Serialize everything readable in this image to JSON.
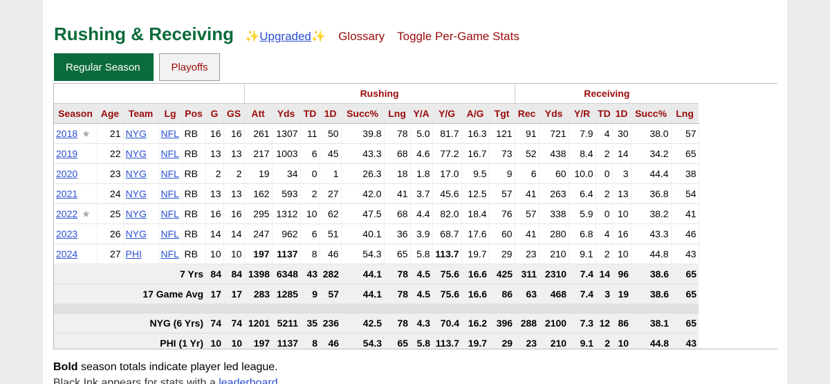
{
  "section": {
    "title": "Rushing & Receiving",
    "sparkle": "✨",
    "upgraded": "Upgraded",
    "glossary": "Glossary",
    "toggle": "Toggle Per-Game Stats"
  },
  "tabs": [
    "Regular Season",
    "Playoffs"
  ],
  "groups": {
    "rushing": "Rushing",
    "receiving": "Receiving"
  },
  "columns": [
    "Season",
    "Age",
    "Team",
    "Lg",
    "Pos",
    "G",
    "GS",
    "Att",
    "Yds",
    "TD",
    "1D",
    "Succ%",
    "Lng",
    "Y/A",
    "Y/G",
    "A/G",
    "Tgt",
    "Rec",
    "Yds",
    "Y/R",
    "TD",
    "1D",
    "Succ%",
    "Lng"
  ],
  "rows": [
    {
      "season": "2018",
      "star": true,
      "age": "21",
      "team": "NYG",
      "lg": "NFL",
      "pos": "RB",
      "vals": [
        "16",
        "16",
        "261",
        "1307",
        "11",
        "50",
        "39.8",
        "78",
        "5.0",
        "81.7",
        "16.3",
        "121",
        "91",
        "721",
        "7.9",
        "4",
        "30",
        "38.0",
        "57"
      ],
      "bold": []
    },
    {
      "season": "2019",
      "star": false,
      "age": "22",
      "team": "NYG",
      "lg": "NFL",
      "pos": "RB",
      "vals": [
        "13",
        "13",
        "217",
        "1003",
        "6",
        "45",
        "43.3",
        "68",
        "4.6",
        "77.2",
        "16.7",
        "73",
        "52",
        "438",
        "8.4",
        "2",
        "14",
        "34.2",
        "65"
      ],
      "bold": []
    },
    {
      "season": "2020",
      "star": false,
      "age": "23",
      "team": "NYG",
      "lg": "NFL",
      "pos": "RB",
      "vals": [
        "2",
        "2",
        "19",
        "34",
        "0",
        "1",
        "26.3",
        "18",
        "1.8",
        "17.0",
        "9.5",
        "9",
        "6",
        "60",
        "10.0",
        "0",
        "3",
        "44.4",
        "38"
      ],
      "bold": []
    },
    {
      "season": "2021",
      "star": false,
      "age": "24",
      "team": "NYG",
      "lg": "NFL",
      "pos": "RB",
      "vals": [
        "13",
        "13",
        "162",
        "593",
        "2",
        "27",
        "42.0",
        "41",
        "3.7",
        "45.6",
        "12.5",
        "57",
        "41",
        "263",
        "6.4",
        "2",
        "13",
        "36.8",
        "54"
      ],
      "bold": []
    },
    {
      "season": "2022",
      "star": true,
      "age": "25",
      "team": "NYG",
      "lg": "NFL",
      "pos": "RB",
      "vals": [
        "16",
        "16",
        "295",
        "1312",
        "10",
        "62",
        "47.5",
        "68",
        "4.4",
        "82.0",
        "18.4",
        "76",
        "57",
        "338",
        "5.9",
        "0",
        "10",
        "38.2",
        "41"
      ],
      "bold": []
    },
    {
      "season": "2023",
      "star": false,
      "age": "26",
      "team": "NYG",
      "lg": "NFL",
      "pos": "RB",
      "vals": [
        "14",
        "14",
        "247",
        "962",
        "6",
        "51",
        "40.1",
        "36",
        "3.9",
        "68.7",
        "17.6",
        "60",
        "41",
        "280",
        "6.8",
        "4",
        "16",
        "43.3",
        "46"
      ],
      "bold": []
    },
    {
      "season": "2024",
      "star": false,
      "age": "27",
      "team": "PHI",
      "lg": "NFL",
      "pos": "RB",
      "vals": [
        "10",
        "10",
        "197",
        "1137",
        "8",
        "46",
        "54.3",
        "65",
        "5.8",
        "113.7",
        "19.7",
        "29",
        "23",
        "210",
        "9.1",
        "2",
        "10",
        "44.8",
        "43"
      ],
      "bold": [
        2,
        3,
        9
      ]
    }
  ],
  "totals": [
    {
      "label": "7 Yrs",
      "vals": [
        "84",
        "84",
        "1398",
        "6348",
        "43",
        "282",
        "44.1",
        "78",
        "4.5",
        "75.6",
        "16.6",
        "425",
        "311",
        "2310",
        "7.4",
        "14",
        "96",
        "38.6",
        "65"
      ]
    },
    {
      "label": "17 Game Avg",
      "vals": [
        "17",
        "17",
        "283",
        "1285",
        "9",
        "57",
        "44.1",
        "78",
        "4.5",
        "75.6",
        "16.6",
        "86",
        "63",
        "468",
        "7.4",
        "3",
        "19",
        "38.6",
        "65"
      ]
    }
  ],
  "teamTotals": [
    {
      "label": "NYG (6 Yrs)",
      "vals": [
        "74",
        "74",
        "1201",
        "5211",
        "35",
        "236",
        "42.5",
        "78",
        "4.3",
        "70.4",
        "16.2",
        "396",
        "288",
        "2100",
        "7.3",
        "12",
        "86",
        "38.1",
        "65"
      ]
    },
    {
      "label": "PHI (1 Yr)",
      "vals": [
        "10",
        "10",
        "197",
        "1137",
        "8",
        "46",
        "54.3",
        "65",
        "5.8",
        "113.7",
        "19.7",
        "29",
        "23",
        "210",
        "9.1",
        "2",
        "10",
        "44.8",
        "43"
      ]
    }
  ],
  "notes": {
    "bold_word": "Bold",
    "bold_rest": " season totals indicate player led league.",
    "black_ink": "Black Ink appears for stats with a ",
    "leaderboard": "leaderboard"
  }
}
